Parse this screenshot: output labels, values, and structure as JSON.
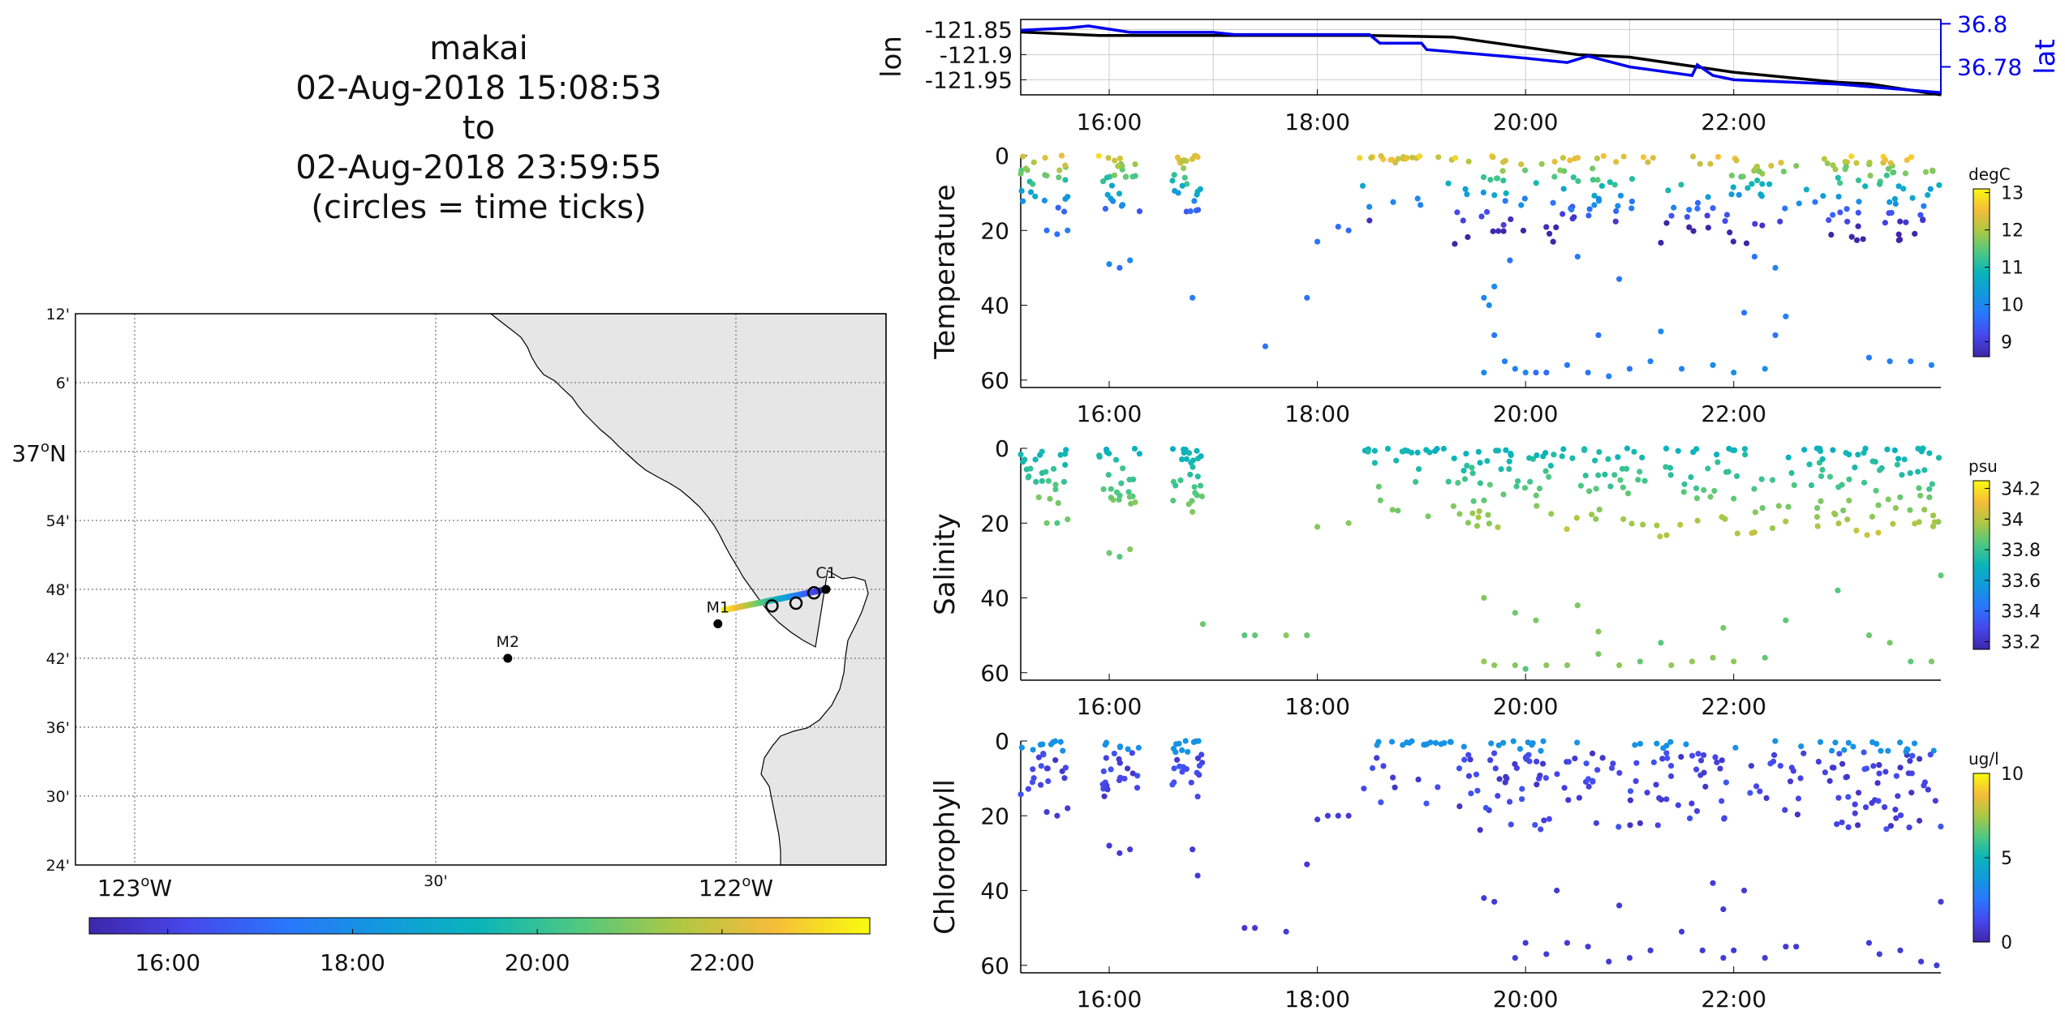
{
  "title_lines": [
    "makai",
    "02-Aug-2018 15:08:53",
    "to",
    "02-Aug-2018 23:59:55",
    "(circles = time ticks)"
  ],
  "chart_data": [
    {
      "id": "map",
      "type": "scatter",
      "lat_tick_labels": [
        "12'",
        "6'",
        "37",
        "54'",
        "48'",
        "42'",
        "36'",
        "30'",
        "24'"
      ],
      "lat_37_suffix": "N",
      "lon_tick_labels": [
        "123",
        "30'",
        "122"
      ],
      "lon_suffix": "W",
      "degree_mark": "o",
      "xlim": [
        -123.1,
        -121.75
      ],
      "ylim": [
        36.4,
        37.2
      ],
      "stations": [
        {
          "name": "M2",
          "lon": -122.38,
          "lat": 36.7
        },
        {
          "name": "M1",
          "lon": -122.03,
          "lat": 36.75
        },
        {
          "name": "C1",
          "lon": -121.85,
          "lat": 36.8
        }
      ],
      "track": {
        "lon_start": -122.02,
        "lat_start": 36.77,
        "lon_end": -121.85,
        "lat_end": 36.8
      },
      "time_tick_circles": [
        {
          "lon": -121.94,
          "lat": 36.776
        },
        {
          "lon": -121.9,
          "lat": 36.78
        },
        {
          "lon": -121.87,
          "lat": 36.795
        }
      ],
      "colorbar_ticks": [
        "16:00",
        "18:00",
        "20:00",
        "22:00"
      ],
      "colorbar_range_hours": [
        15.15,
        23.6
      ]
    },
    {
      "id": "lon-lat",
      "type": "line",
      "ylabel_left": "lon",
      "ylabel_right": "lat",
      "left_ticks": [
        "-121.85",
        "-121.9",
        "-121.95"
      ],
      "right_ticks": [
        "36.8",
        "36.78"
      ],
      "x_ticks": [
        "16:00",
        "18:00",
        "20:00",
        "22:00"
      ],
      "xlim_hours": [
        15.15,
        23.99
      ],
      "ylim_left": [
        -121.98,
        -121.83
      ],
      "ylim_right": [
        36.767,
        36.802
      ],
      "series": [
        {
          "name": "lon",
          "color": "#000000",
          "x": [
            15.15,
            15.9,
            16.5,
            17.5,
            18.5,
            19.3,
            20.5,
            21.0,
            22.0,
            23.0,
            23.3,
            23.99
          ],
          "y": [
            -121.855,
            -121.862,
            -121.862,
            -121.862,
            -121.862,
            -121.865,
            -121.9,
            -121.905,
            -121.935,
            -121.955,
            -121.958,
            -121.98
          ]
        },
        {
          "name": "lat",
          "color": "#0000ee",
          "x": [
            15.15,
            15.6,
            15.8,
            16.2,
            17.0,
            17.2,
            18.0,
            18.5,
            18.6,
            19.0,
            19.05,
            20.0,
            20.4,
            20.6,
            21.0,
            21.6,
            21.65,
            21.8,
            22.0,
            23.0,
            23.99
          ],
          "y": [
            36.797,
            36.798,
            36.799,
            36.796,
            36.796,
            36.795,
            36.795,
            36.795,
            36.791,
            36.791,
            36.788,
            36.784,
            36.782,
            36.785,
            36.78,
            36.776,
            36.781,
            36.776,
            36.774,
            36.772,
            36.768
          ]
        }
      ]
    },
    {
      "id": "temperature",
      "type": "scatter",
      "ylabel": "Temperature",
      "unit": "degC",
      "cbar_ticks": [
        "13",
        "12",
        "11",
        "10",
        "9"
      ],
      "cbar_range": [
        8.6,
        13.1
      ],
      "y_ticks": [
        "0",
        "20",
        "40",
        "60"
      ],
      "ylim": [
        0,
        62
      ],
      "x_ticks": [
        "16:00",
        "18:00",
        "20:00",
        "22:00"
      ],
      "xlim_hours": [
        15.15,
        23.99
      ],
      "deep_points": [
        [
          15.4,
          20
        ],
        [
          15.5,
          21
        ],
        [
          15.6,
          20
        ],
        [
          16.0,
          29
        ],
        [
          16.1,
          30
        ],
        [
          16.2,
          28
        ],
        [
          16.8,
          38
        ],
        [
          17.5,
          51
        ],
        [
          17.9,
          38
        ],
        [
          18.0,
          23
        ],
        [
          18.3,
          20
        ],
        [
          18.2,
          19
        ],
        [
          19.6,
          38
        ],
        [
          19.65,
          40
        ],
        [
          19.7,
          48
        ],
        [
          19.8,
          55
        ],
        [
          19.9,
          57
        ],
        [
          20.0,
          58
        ],
        [
          20.1,
          58
        ],
        [
          20.2,
          58
        ],
        [
          20.4,
          56
        ],
        [
          20.6,
          58
        ],
        [
          20.8,
          59
        ],
        [
          21.0,
          57
        ],
        [
          21.2,
          55
        ],
        [
          21.5,
          57
        ],
        [
          21.8,
          56
        ],
        [
          22.0,
          58
        ],
        [
          22.3,
          57
        ],
        [
          22.1,
          42
        ],
        [
          22.2,
          27
        ],
        [
          22.4,
          30
        ],
        [
          23.3,
          54
        ],
        [
          23.5,
          55
        ],
        [
          23.7,
          55
        ],
        [
          23.9,
          56
        ],
        [
          19.6,
          58
        ],
        [
          20.7,
          48
        ],
        [
          21.3,
          47
        ],
        [
          22.4,
          48
        ],
        [
          22.5,
          43
        ],
        [
          19.7,
          35
        ],
        [
          19.85,
          28
        ],
        [
          20.5,
          27
        ],
        [
          20.9,
          33
        ]
      ]
    },
    {
      "id": "salinity",
      "type": "scatter",
      "ylabel": "Salinity",
      "unit": "psu",
      "cbar_ticks": [
        "34.2",
        "34",
        "33.8",
        "33.6",
        "33.4",
        "33.2"
      ],
      "cbar_range": [
        33.15,
        34.25
      ],
      "y_ticks": [
        "0",
        "20",
        "40",
        "60"
      ],
      "ylim": [
        0,
        62
      ],
      "x_ticks": [
        "16:00",
        "18:00",
        "20:00",
        "22:00"
      ],
      "xlim_hours": [
        15.15,
        23.99
      ],
      "deep_points": [
        [
          15.4,
          20
        ],
        [
          15.5,
          20
        ],
        [
          15.6,
          19
        ],
        [
          16.0,
          28
        ],
        [
          16.1,
          29
        ],
        [
          16.2,
          27
        ],
        [
          16.8,
          17
        ],
        [
          16.9,
          47
        ],
        [
          17.3,
          50
        ],
        [
          17.4,
          50
        ],
        [
          17.7,
          50
        ],
        [
          17.9,
          50
        ],
        [
          18.0,
          21
        ],
        [
          18.3,
          20
        ],
        [
          19.6,
          40
        ],
        [
          19.6,
          57
        ],
        [
          19.7,
          58
        ],
        [
          19.9,
          58
        ],
        [
          20.0,
          59
        ],
        [
          20.2,
          58
        ],
        [
          20.4,
          58
        ],
        [
          20.7,
          55
        ],
        [
          20.9,
          58
        ],
        [
          21.1,
          57
        ],
        [
          21.4,
          58
        ],
        [
          21.6,
          57
        ],
        [
          21.8,
          56
        ],
        [
          22.0,
          57
        ],
        [
          22.3,
          56
        ],
        [
          23.3,
          50
        ],
        [
          23.5,
          52
        ],
        [
          23.7,
          57
        ],
        [
          23.9,
          57
        ],
        [
          19.9,
          44
        ],
        [
          20.1,
          46
        ],
        [
          20.5,
          42
        ],
        [
          20.7,
          49
        ],
        [
          21.3,
          52
        ],
        [
          21.9,
          48
        ],
        [
          22.5,
          46
        ],
        [
          23.0,
          38
        ],
        [
          23.99,
          34
        ]
      ]
    },
    {
      "id": "chlorophyll",
      "type": "scatter",
      "ylabel": "Chlorophyll",
      "unit": "ug/l",
      "cbar_ticks": [
        "10",
        "5",
        "0"
      ],
      "cbar_range": [
        0,
        10
      ],
      "y_ticks": [
        "0",
        "20",
        "40",
        "60"
      ],
      "ylim": [
        0,
        62
      ],
      "x_ticks": [
        "16:00",
        "18:00",
        "20:00",
        "22:00"
      ],
      "xlim_hours": [
        15.15,
        23.99
      ],
      "deep_points": [
        [
          15.4,
          19
        ],
        [
          15.5,
          20
        ],
        [
          15.6,
          18
        ],
        [
          16.0,
          28
        ],
        [
          16.1,
          30
        ],
        [
          16.2,
          29
        ],
        [
          16.8,
          29
        ],
        [
          16.85,
          36
        ],
        [
          17.3,
          50
        ],
        [
          17.4,
          50
        ],
        [
          17.7,
          51
        ],
        [
          17.9,
          33
        ],
        [
          18.0,
          21
        ],
        [
          18.1,
          20
        ],
        [
          18.2,
          20
        ],
        [
          18.3,
          20
        ],
        [
          19.6,
          42
        ],
        [
          19.7,
          43
        ],
        [
          19.9,
          58
        ],
        [
          20.0,
          54
        ],
        [
          20.2,
          57
        ],
        [
          20.4,
          54
        ],
        [
          20.6,
          55
        ],
        [
          20.8,
          59
        ],
        [
          21.0,
          58
        ],
        [
          21.2,
          56
        ],
        [
          21.5,
          51
        ],
        [
          21.7,
          56
        ],
        [
          21.9,
          58
        ],
        [
          22.0,
          56
        ],
        [
          22.3,
          58
        ],
        [
          22.5,
          55
        ],
        [
          22.6,
          55
        ],
        [
          23.3,
          54
        ],
        [
          23.4,
          57
        ],
        [
          23.6,
          56
        ],
        [
          23.8,
          59
        ],
        [
          23.95,
          60
        ],
        [
          23.99,
          43
        ],
        [
          21.8,
          38
        ],
        [
          21.9,
          45
        ],
        [
          22.1,
          40
        ],
        [
          20.3,
          40
        ],
        [
          20.9,
          44
        ]
      ]
    }
  ]
}
